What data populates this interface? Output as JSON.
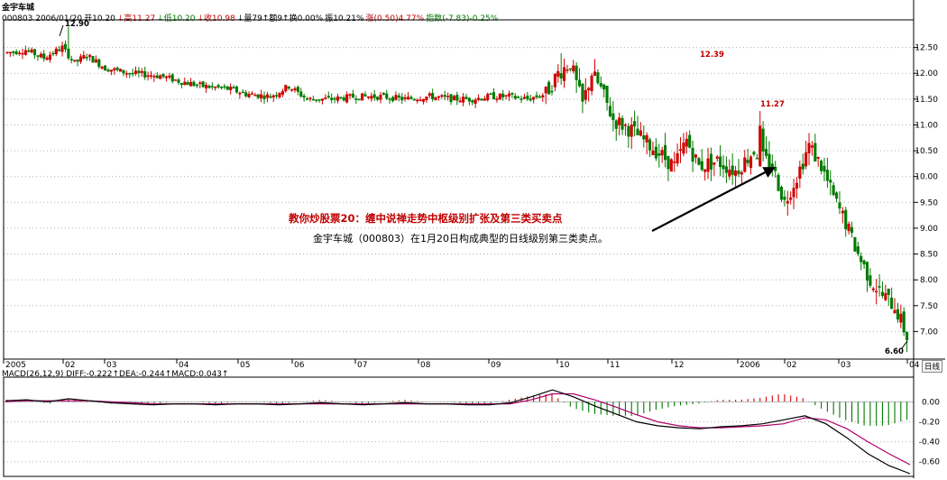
{
  "header": {
    "name": "金宇车城",
    "info": [
      {
        "text": "000803 2006/01/20",
        "color": "#000000"
      },
      {
        "text": "开10.20",
        "color": "#000000"
      },
      {
        "text": "↓高11.27",
        "color": "#c00000"
      },
      {
        "text": "↓低10.20",
        "color": "#007a00"
      },
      {
        "text": "↓收10.98",
        "color": "#c00000"
      },
      {
        "text": "↓量79↑额9↑换0.00%",
        "color": "#000000"
      },
      {
        "text": "振10.21%",
        "color": "#000000"
      },
      {
        "text": "涨(0.50)4.77%",
        "color": "#c00000"
      },
      {
        "text": "指数(-7.83)-0.25%",
        "color": "#007a00"
      }
    ]
  },
  "macd_header": {
    "text": "MACD(26,12,9) DIFF:-0.222↑DEA:-0.244↑MACD:0.043↑",
    "dea_text": "DEA:-0.244",
    "macd_text": "MACD:0.043↑"
  },
  "period_tab": "日线",
  "annotation": {
    "title": "教你炒股票20：缠中说禅走势中枢级别扩张及第三类买卖点",
    "text": "金宇车城（000803）在1月20日构成典型的日线级别第三类卖点。"
  },
  "price_labels": [
    {
      "text": "12.90",
      "color": "#000000"
    },
    {
      "text": "12.39",
      "color": "#c00000"
    },
    {
      "text": "11.27",
      "color": "#c00000"
    },
    {
      "text": "6.60",
      "color": "#000000"
    }
  ],
  "colors": {
    "up": "#d00000",
    "down": "#007a00",
    "diff": "#000000",
    "dea": "#b0006e",
    "grid": "#b0b0b0"
  },
  "chart_data": [
    {
      "type": "candlestick",
      "title": "金宇车城 日线",
      "y_ticks": [
        "12.50",
        "12.00",
        "11.50",
        "11.00",
        "10.50",
        "10.00",
        "9.50",
        "9.00",
        "8.50",
        "8.00",
        "7.50",
        "7.00"
      ],
      "ylim": [
        6.5,
        13.0
      ],
      "x_ticks": [
        "2005",
        "02",
        "03",
        "04",
        "05",
        "06",
        "07",
        "08",
        "09",
        "10",
        "11",
        "12",
        "2006",
        "02",
        "03",
        "04"
      ],
      "anchors": [
        [
          0,
          12.4
        ],
        [
          6,
          12.45
        ],
        [
          12,
          12.3
        ],
        [
          18,
          12.5
        ],
        [
          22,
          12.2
        ],
        [
          26,
          12.35
        ],
        [
          32,
          12.1
        ],
        [
          40,
          12.0
        ],
        [
          50,
          11.95
        ],
        [
          56,
          11.85
        ],
        [
          64,
          11.75
        ],
        [
          72,
          11.7
        ],
        [
          78,
          11.6
        ],
        [
          86,
          11.55
        ],
        [
          92,
          11.75
        ],
        [
          98,
          11.5
        ],
        [
          106,
          11.5
        ],
        [
          114,
          11.55
        ],
        [
          122,
          11.55
        ],
        [
          130,
          11.5
        ],
        [
          138,
          11.55
        ],
        [
          146,
          11.5
        ],
        [
          152,
          11.5
        ],
        [
          158,
          11.55
        ],
        [
          164,
          11.55
        ],
        [
          170,
          11.5
        ],
        [
          176,
          11.6
        ],
        [
          180,
          12.0
        ],
        [
          184,
          12.2
        ],
        [
          188,
          11.4
        ],
        [
          191,
          12.0
        ],
        [
          194,
          11.7
        ],
        [
          198,
          11.1
        ],
        [
          204,
          10.9
        ],
        [
          210,
          10.6
        ],
        [
          214,
          10.4
        ],
        [
          218,
          10.2
        ],
        [
          222,
          10.7
        ],
        [
          226,
          10.2
        ],
        [
          232,
          10.3
        ],
        [
          238,
          10.1
        ],
        [
          244,
          10.5
        ],
        [
          250,
          10.2
        ],
        [
          254,
          9.5
        ],
        [
          258,
          10.0
        ],
        [
          262,
          10.6
        ],
        [
          266,
          10.2
        ],
        [
          270,
          9.6
        ],
        [
          274,
          9.1
        ],
        [
          278,
          8.5
        ],
        [
          282,
          8.0
        ],
        [
          286,
          7.7
        ],
        [
          290,
          7.5
        ],
        [
          294,
          6.9
        ]
      ],
      "extrema": {
        "high_12_90": 12.9,
        "high_12_39": 12.39,
        "high_11_27": 11.27,
        "low_6_60": 6.6
      }
    },
    {
      "type": "macd",
      "y_ticks": [
        "0.00",
        "-0.20",
        "-0.40",
        "-0.60"
      ],
      "ylim": [
        -0.72,
        0.22
      ],
      "series": [
        {
          "name": "DIFF",
          "values": [
            0.01,
            0.02,
            0.0,
            0.03,
            0.01,
            -0.01,
            -0.02,
            -0.03,
            -0.02,
            -0.02,
            -0.03,
            -0.02,
            -0.02,
            -0.03,
            -0.02,
            -0.01,
            -0.02,
            -0.03,
            -0.02,
            -0.01,
            -0.02,
            -0.02,
            -0.03,
            -0.03,
            -0.01,
            0.05,
            0.12,
            0.05,
            -0.04,
            -0.12,
            -0.2,
            -0.24,
            -0.26,
            -0.27,
            -0.25,
            -0.24,
            -0.22,
            -0.18,
            -0.14,
            -0.22,
            -0.36,
            -0.52,
            -0.64,
            -0.72
          ]
        },
        {
          "name": "DEA",
          "values": [
            0.0,
            0.01,
            0.01,
            0.01,
            0.01,
            0.0,
            -0.01,
            -0.02,
            -0.02,
            -0.02,
            -0.02,
            -0.02,
            -0.02,
            -0.02,
            -0.02,
            -0.02,
            -0.02,
            -0.02,
            -0.02,
            -0.02,
            -0.02,
            -0.02,
            -0.02,
            -0.02,
            -0.02,
            0.02,
            0.08,
            0.08,
            0.02,
            -0.05,
            -0.13,
            -0.2,
            -0.24,
            -0.26,
            -0.26,
            -0.25,
            -0.24,
            -0.22,
            -0.16,
            -0.18,
            -0.27,
            -0.4,
            -0.52,
            -0.63
          ]
        }
      ]
    }
  ]
}
